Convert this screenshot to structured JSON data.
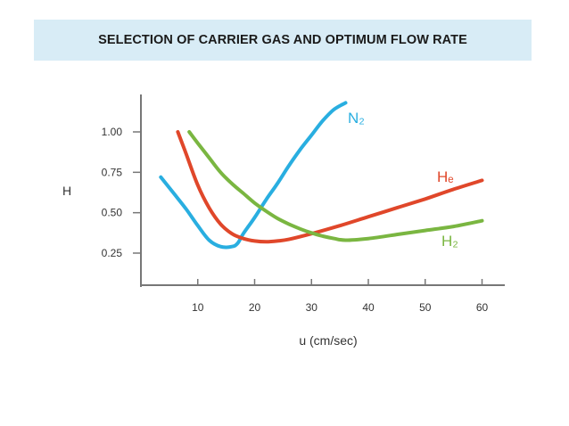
{
  "slide": {
    "title": "SELECTION OF CARRIER GAS AND OPTIMUM FLOW RATE",
    "title_bg": "#d8ecf6"
  },
  "chart_data": {
    "type": "line",
    "title": "",
    "xlabel": "u (cm/sec)",
    "ylabel": "H",
    "xlim": [
      0,
      64
    ],
    "ylim": [
      0,
      1.25
    ],
    "x_ticks": [
      10,
      20,
      30,
      40,
      50,
      60
    ],
    "y_ticks": [
      0.25,
      0.5,
      0.75,
      1.0
    ],
    "y_tick_labels": [
      "0.25",
      "0.50",
      "0.75",
      "1.00"
    ],
    "grid": false,
    "legend": "inline labels at curve ends",
    "series": [
      {
        "name": "N₂",
        "color": "#29aee0",
        "x": [
          3.5,
          6,
          8,
          10,
          12,
          14,
          16,
          17,
          18,
          20,
          22,
          24,
          26,
          28,
          30,
          32,
          34,
          36
        ],
        "y": [
          0.72,
          0.61,
          0.52,
          0.42,
          0.33,
          0.29,
          0.29,
          0.31,
          0.37,
          0.47,
          0.58,
          0.68,
          0.79,
          0.89,
          0.98,
          1.07,
          1.14,
          1.18
        ]
      },
      {
        "name": "Hₑ",
        "color": "#e0472a",
        "x": [
          6.5,
          8,
          10,
          12,
          14,
          16,
          18,
          20,
          22,
          24,
          26,
          30,
          35,
          40,
          45,
          50,
          55,
          60
        ],
        "y": [
          1.0,
          0.86,
          0.67,
          0.53,
          0.43,
          0.37,
          0.34,
          0.325,
          0.32,
          0.325,
          0.335,
          0.37,
          0.42,
          0.475,
          0.53,
          0.585,
          0.645,
          0.7
        ]
      },
      {
        "name": "H₂",
        "color": "#7ab641",
        "x": [
          8.5,
          10,
          12,
          14,
          16,
          18,
          20,
          22,
          24,
          26,
          28,
          30,
          32,
          34,
          36,
          40,
          45,
          50,
          55,
          60
        ],
        "y": [
          1.0,
          0.93,
          0.84,
          0.75,
          0.68,
          0.62,
          0.56,
          0.51,
          0.465,
          0.43,
          0.4,
          0.375,
          0.355,
          0.34,
          0.33,
          0.34,
          0.365,
          0.39,
          0.415,
          0.45
        ]
      }
    ]
  }
}
